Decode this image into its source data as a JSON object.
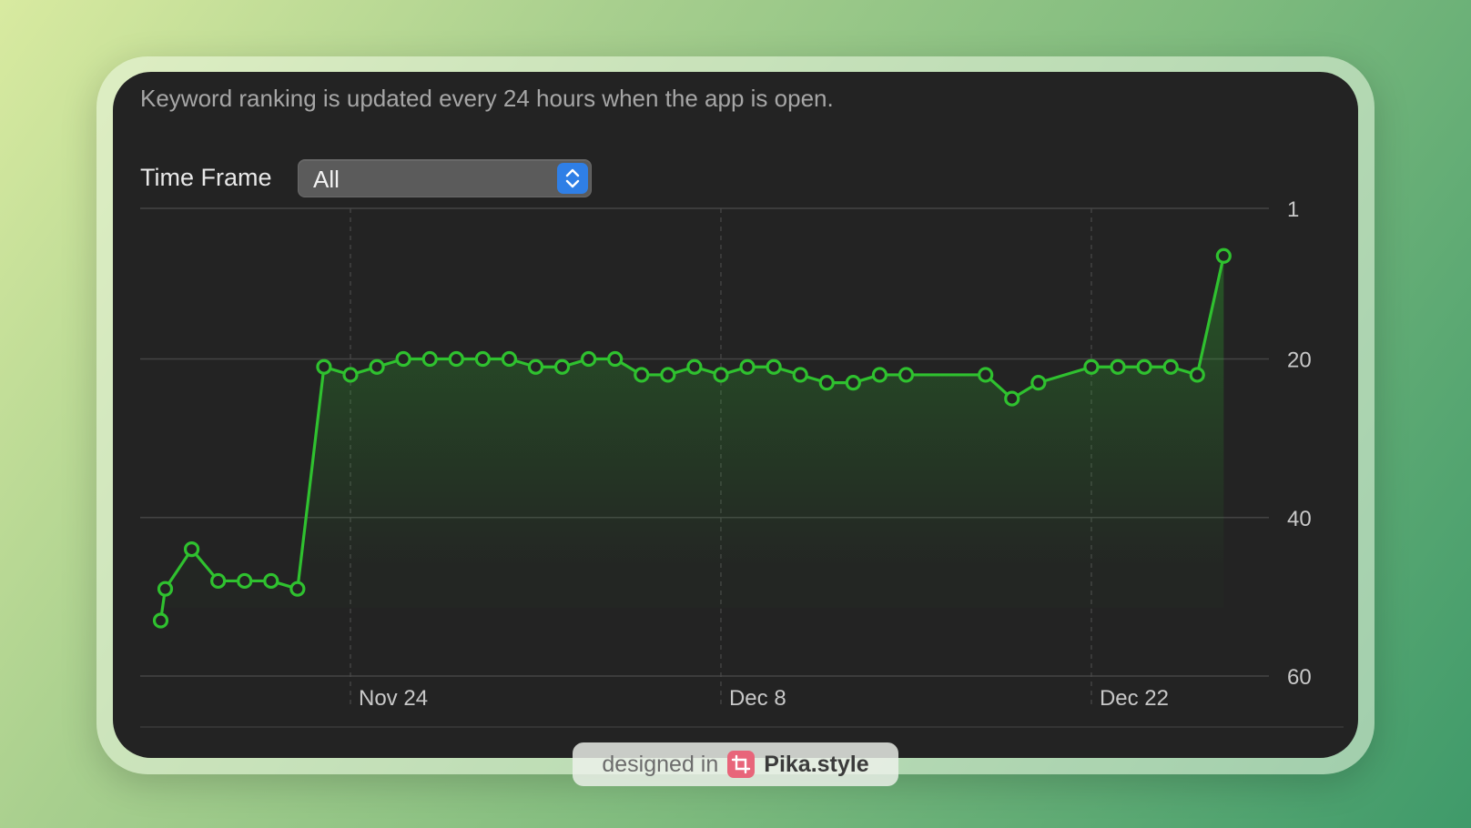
{
  "info_text": "Keyword ranking is updated every 24 hours when the app is open.",
  "time_frame": {
    "label": "Time Frame",
    "selected": "All"
  },
  "badge": {
    "prefix": "designed in",
    "brand": "Pika.style"
  },
  "colors": {
    "line": "#2fc12f",
    "grid": "#444444",
    "tick_text": "#c8c8c8",
    "accent_blue": "#2f7fe6"
  },
  "icons": [
    "chevron-up-down-icon",
    "pika-logo-icon"
  ],
  "chart_data": {
    "type": "area",
    "title": "",
    "xlabel": "",
    "ylabel": "",
    "y_inverted": true,
    "ylim": [
      1,
      60
    ],
    "yticks": [
      1,
      20,
      40,
      60
    ],
    "x_range": [
      "2024-11-16",
      "2024-12-28"
    ],
    "xticks": [
      {
        "date": "2024-11-24",
        "label": "Nov 24"
      },
      {
        "date": "2024-12-08",
        "label": "Dec 8"
      },
      {
        "date": "2024-12-22",
        "label": "Dec 22"
      }
    ],
    "grid": true,
    "legend": "none",
    "series": [
      {
        "points": [
          {
            "x": "2024-11-17",
            "y": 53
          },
          {
            "x": "2024-11-17",
            "y": 49
          },
          {
            "x": "2024-11-18",
            "y": 44
          },
          {
            "x": "2024-11-19",
            "y": 48
          },
          {
            "x": "2024-11-20",
            "y": 48
          },
          {
            "x": "2024-11-21",
            "y": 48
          },
          {
            "x": "2024-11-22",
            "y": 49
          },
          {
            "x": "2024-11-23",
            "y": 21
          },
          {
            "x": "2024-11-24",
            "y": 22
          },
          {
            "x": "2024-11-25",
            "y": 21
          },
          {
            "x": "2024-11-26",
            "y": 20
          },
          {
            "x": "2024-11-27",
            "y": 20
          },
          {
            "x": "2024-11-28",
            "y": 20
          },
          {
            "x": "2024-11-29",
            "y": 20
          },
          {
            "x": "2024-11-30",
            "y": 20
          },
          {
            "x": "2024-12-01",
            "y": 21
          },
          {
            "x": "2024-12-02",
            "y": 21
          },
          {
            "x": "2024-12-03",
            "y": 20
          },
          {
            "x": "2024-12-04",
            "y": 20
          },
          {
            "x": "2024-12-05",
            "y": 22
          },
          {
            "x": "2024-12-06",
            "y": 22
          },
          {
            "x": "2024-12-07",
            "y": 21
          },
          {
            "x": "2024-12-08",
            "y": 22
          },
          {
            "x": "2024-12-09",
            "y": 21
          },
          {
            "x": "2024-12-10",
            "y": 21
          },
          {
            "x": "2024-12-11",
            "y": 22
          },
          {
            "x": "2024-12-12",
            "y": 23
          },
          {
            "x": "2024-12-13",
            "y": 23
          },
          {
            "x": "2024-12-14",
            "y": 22
          },
          {
            "x": "2024-12-15",
            "y": 22
          },
          {
            "x": "2024-12-18",
            "y": 22
          },
          {
            "x": "2024-12-19",
            "y": 25
          },
          {
            "x": "2024-12-20",
            "y": 23
          },
          {
            "x": "2024-12-22",
            "y": 21
          },
          {
            "x": "2024-12-23",
            "y": 21
          },
          {
            "x": "2024-12-24",
            "y": 21
          },
          {
            "x": "2024-12-25",
            "y": 21
          },
          {
            "x": "2024-12-26",
            "y": 22
          },
          {
            "x": "2024-12-27",
            "y": 7
          }
        ]
      }
    ]
  }
}
